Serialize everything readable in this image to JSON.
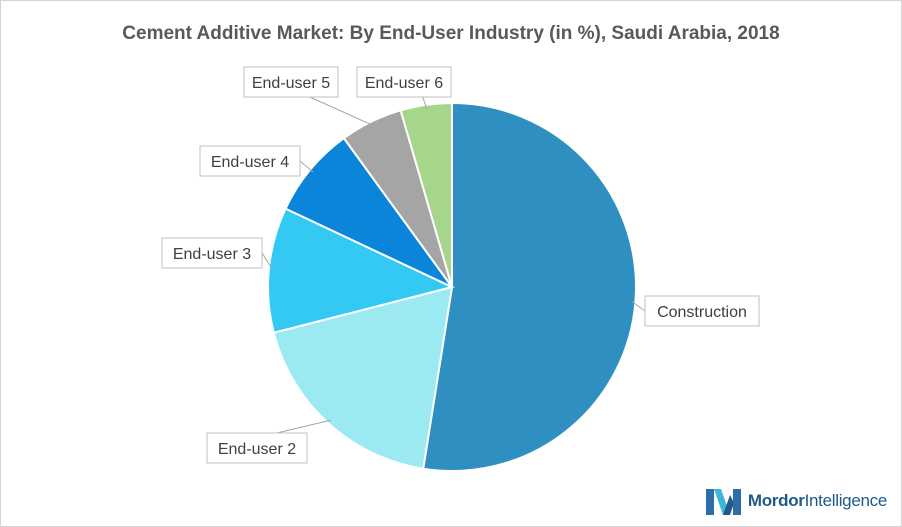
{
  "chart_data": {
    "type": "pie",
    "title": "Cement Additive Market: By End-User Industry (in %), Saudi Arabia, 2018",
    "slices": [
      {
        "label": "Construction",
        "value": 52.5,
        "color": "#2e8fc0"
      },
      {
        "label": "End-user 2",
        "value": 18.5,
        "color": "#9beaf2"
      },
      {
        "label": "End-user 3",
        "value": 11,
        "color": "#34c9f3"
      },
      {
        "label": "End-user 4",
        "value": 8,
        "color": "#0b85d9"
      },
      {
        "label": "End-user 5",
        "value": 5.5,
        "color": "#a5a5a5"
      },
      {
        "label": "End-user 6",
        "value": 4.5,
        "color": "#a6d68c"
      }
    ]
  },
  "branding": {
    "logo_word1": "Mordor",
    "logo_word2": "Intelligence"
  }
}
